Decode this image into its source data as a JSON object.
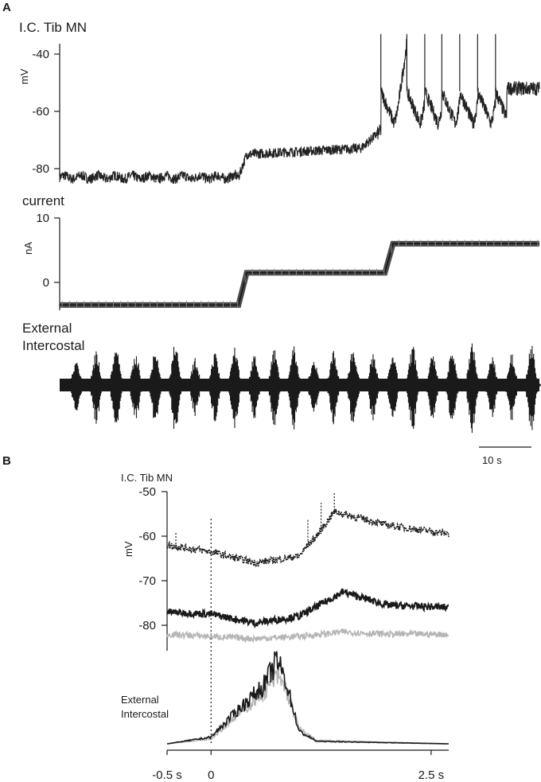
{
  "chart_data": [
    {
      "panel": "A",
      "type": "line",
      "title": "I.C. Tib MN",
      "ylabel": "mV",
      "ylim": [
        -86,
        -33
      ],
      "yticks": [
        "-40",
        "-60",
        "-80"
      ],
      "y_tick_values": [
        -40,
        -60,
        -80
      ],
      "x": [
        0,
        22,
        37,
        44,
        59
      ],
      "values": [
        -83,
        -83,
        -75,
        -67,
        -52
      ],
      "spike_peak": -33
    },
    {
      "panel": "A",
      "type": "line",
      "title": "current",
      "ylabel": "nA",
      "ylim": [
        -4,
        10
      ],
      "yticks": [
        "10",
        "0"
      ],
      "y_tick_values": [
        10,
        0
      ],
      "x": [
        0,
        22,
        23,
        40,
        41,
        59
      ],
      "values": [
        -3.5,
        -3.5,
        1.5,
        1.5,
        6,
        6
      ]
    },
    {
      "panel": "A",
      "type": "line",
      "title": "External\nIntercostal",
      "title_lines": [
        "External",
        "Intercostal"
      ],
      "burst_count": 24,
      "scalebar": "10 s"
    },
    {
      "panel": "B",
      "type": "line",
      "title": "I.C. Tib MN",
      "ylabel": "mV",
      "ylim": [
        -86,
        -50
      ],
      "yticks": [
        "-50",
        "-60",
        "-70",
        "-80"
      ],
      "y_tick_values": [
        -50,
        -60,
        -70,
        -80
      ],
      "xlim": [
        -0.5,
        2.7
      ],
      "xticks": [
        "-0.5 s",
        "0",
        "2.5 s"
      ],
      "x_tick_values": [
        -0.5,
        0,
        2.5
      ],
      "series": [
        {
          "style": "dotted",
          "color": "#1a1a1a",
          "x": [
            -0.5,
            0,
            0.5,
            1.0,
            1.1,
            1.2,
            1.4,
            1.6,
            2.0,
            2.7
          ],
          "values": [
            -62,
            -63.5,
            -66,
            -64.5,
            -62,
            -60,
            -54.5,
            -55.5,
            -57.5,
            -59.5
          ]
        },
        {
          "style": "solid",
          "color": "#1a1a1a",
          "x": [
            -0.5,
            0,
            0.5,
            1.0,
            1.5,
            2.0,
            2.7
          ],
          "values": [
            -77,
            -77.5,
            -79.5,
            -78,
            -72.5,
            -75.5,
            -76
          ]
        },
        {
          "style": "solid",
          "color": "#b5b5b5",
          "x": [
            -0.5,
            0,
            0.5,
            1.0,
            1.5,
            2.0,
            2.7
          ],
          "values": [
            -82,
            -82.5,
            -83,
            -82.5,
            -81.5,
            -82,
            -82
          ]
        }
      ]
    },
    {
      "panel": "B",
      "type": "line",
      "title": "External\nIntercostal",
      "title_lines": [
        "External",
        "Intercostal"
      ],
      "series": [
        {
          "color": "#1a1a1a",
          "x": [
            -0.5,
            0,
            0.3,
            0.6,
            0.75,
            0.85,
            1.0,
            1.2,
            2.7
          ],
          "values": [
            0,
            0.08,
            0.4,
            0.7,
            1.0,
            0.75,
            0.15,
            0.03,
            0
          ]
        },
        {
          "color": "#b5b5b5",
          "x": [
            -0.5,
            0,
            0.3,
            0.6,
            0.75,
            0.85,
            1.0,
            1.2,
            2.7
          ],
          "values": [
            0,
            0.06,
            0.35,
            0.62,
            0.8,
            0.66,
            0.18,
            0.04,
            0
          ]
        }
      ]
    }
  ]
}
